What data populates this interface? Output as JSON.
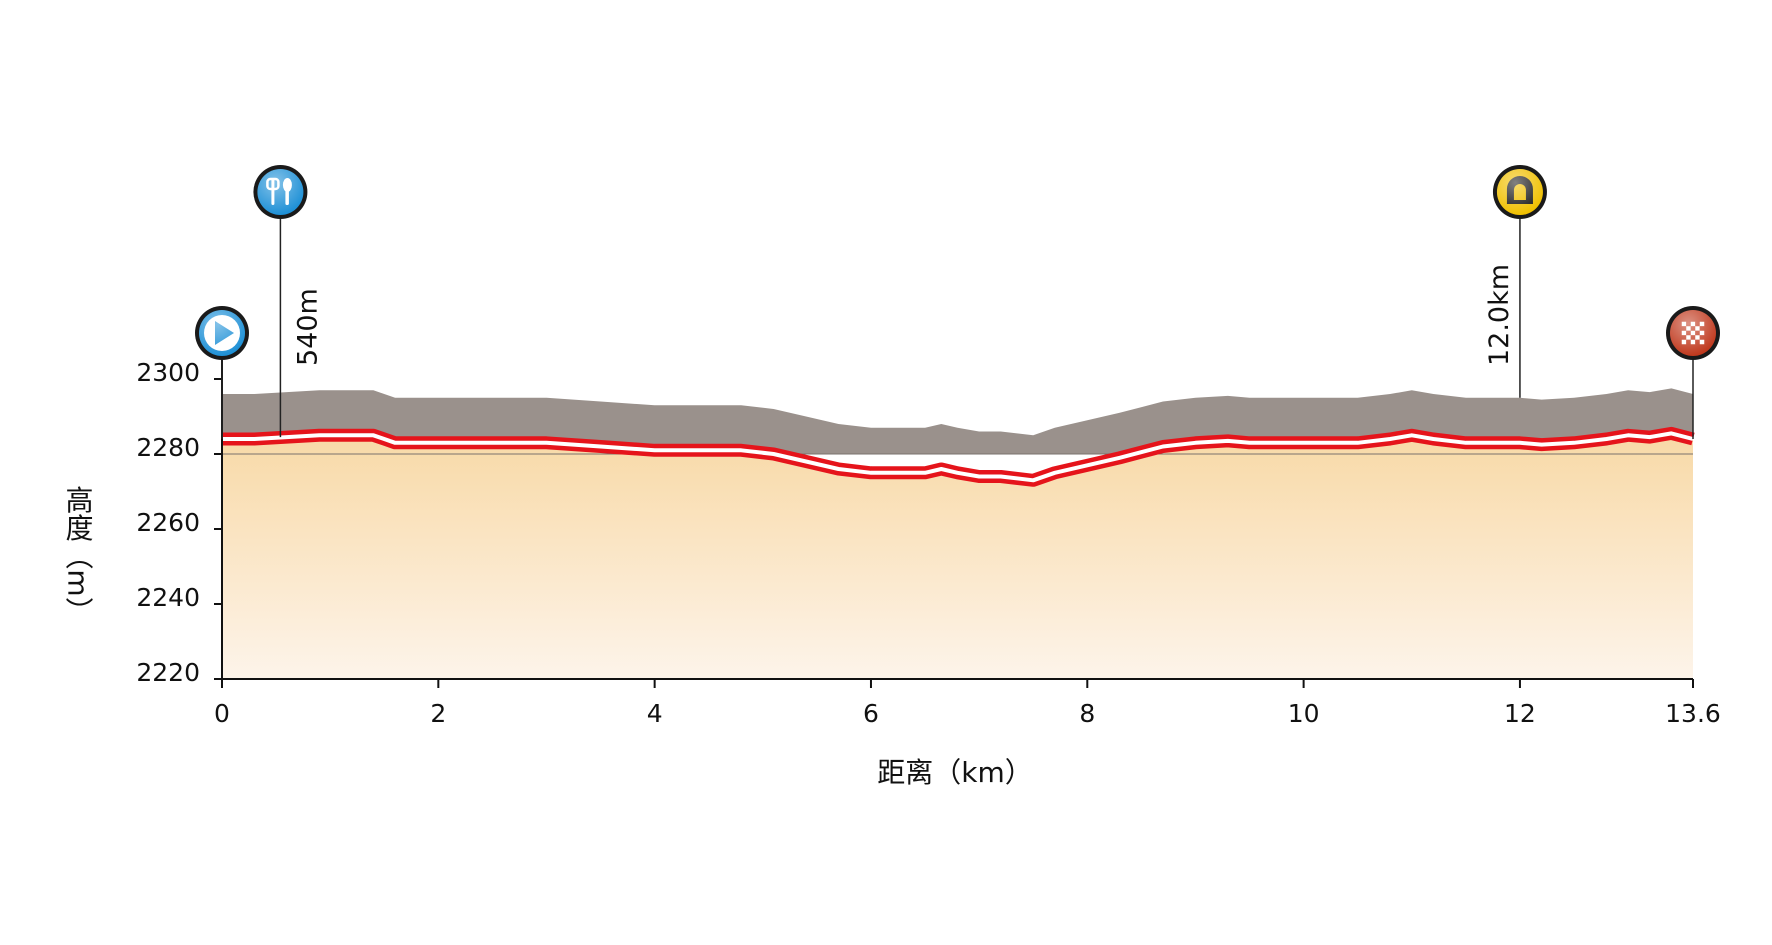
{
  "chart_data": {
    "type": "area",
    "xlabel": "距离（km）",
    "ylabel": "高度（m）",
    "xlim": [
      0,
      13.6
    ],
    "ylim": [
      2220,
      2300
    ],
    "xticks": [
      0,
      2,
      4,
      6,
      8,
      10,
      12,
      13.6
    ],
    "xtick_labels": [
      "0",
      "2",
      "4",
      "6",
      "8",
      "10",
      "12",
      "13.6"
    ],
    "yticks": [
      2220,
      2240,
      2260,
      2280,
      2300
    ],
    "ytick_labels": [
      "2220",
      "2240",
      "2260",
      "2280",
      "2300"
    ],
    "grid": false,
    "series": [
      {
        "x": [
          0,
          0.3,
          0.6,
          0.9,
          1.1,
          1.4,
          1.6,
          2.0,
          2.5,
          3.0,
          3.5,
          4.0,
          4.5,
          4.8,
          5.1,
          5.4,
          5.7,
          6.0,
          6.2,
          6.5,
          6.65,
          6.8,
          7.0,
          7.2,
          7.5,
          7.7,
          8.0,
          8.3,
          8.7,
          9.0,
          9.3,
          9.5,
          10.0,
          10.5,
          10.8,
          11.0,
          11.2,
          11.5,
          12.0,
          12.2,
          12.5,
          12.8,
          13.0,
          13.2,
          13.4,
          13.6
        ],
        "y": [
          2284,
          2284,
          2284.5,
          2285,
          2285,
          2285,
          2283,
          2283,
          2283,
          2283,
          2282,
          2281,
          2281,
          2281,
          2280,
          2278,
          2276,
          2275,
          2275,
          2275,
          2276,
          2275,
          2274,
          2274,
          2273,
          2275,
          2277,
          2279,
          2282,
          2283,
          2283.5,
          2283,
          2283,
          2283,
          2284,
          2285,
          2284,
          2283,
          2283,
          2282.5,
          2283,
          2284,
          2285,
          2284.5,
          2285.5,
          2284
        ]
      }
    ],
    "roadside_profile_y": [
      2296,
      2296,
      2296.5,
      2297,
      2297,
      2297,
      2295,
      2295,
      2295,
      2295,
      2294,
      2293,
      2293,
      2293,
      2292,
      2290,
      2288,
      2287,
      2287,
      2287,
      2288,
      2287,
      2286,
      2286,
      2285,
      2287,
      2289,
      2291,
      2294,
      2295,
      2295.5,
      2295,
      2295,
      2295,
      2296,
      2297,
      2296,
      2295,
      2295,
      2294.5,
      2295,
      2296,
      2297,
      2296.5,
      2297.5,
      2296
    ],
    "baseline_y": 2280,
    "markers": [
      {
        "name": "start",
        "x": 0,
        "icon": "start-play-icon",
        "color": "#1e90d6",
        "label": ""
      },
      {
        "name": "feed",
        "x": 0.54,
        "icon": "fork-knife-icon",
        "color": "#1e90d6",
        "label": "540m"
      },
      {
        "name": "tunnel",
        "x": 12.0,
        "icon": "tunnel-icon",
        "color": "#f0c000",
        "label": "12.0km"
      },
      {
        "name": "finish",
        "x": 13.6,
        "icon": "checkered-flag-icon",
        "color": "#c0391e",
        "label": ""
      }
    ],
    "colors": {
      "road_line": "#e5141b",
      "roadside": "#9a918c",
      "fill_top": "#f8d9a6",
      "fill_bottom": "#fdf4ea"
    }
  }
}
